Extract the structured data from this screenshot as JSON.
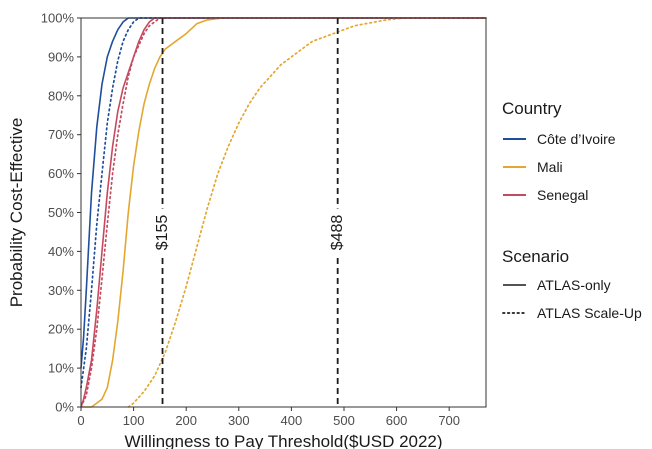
{
  "chart_data": {
    "type": "line",
    "title": "",
    "xlabel": "Willingness to Pay Threshold($USD 2022)",
    "ylabel": "Probability Cost-Effective",
    "xlim": [
      0,
      770
    ],
    "ylim": [
      0,
      1
    ],
    "x_ticks": [
      "0",
      "100",
      "200",
      "300",
      "400",
      "500",
      "600",
      "700"
    ],
    "y_ticks": [
      "0%",
      "10%",
      "20%",
      "30%",
      "40%",
      "50%",
      "60%",
      "70%",
      "80%",
      "90%",
      "100%"
    ],
    "grid": false,
    "reference_lines": [
      {
        "x": 155,
        "label": "$155",
        "color": "#1a1a1a"
      },
      {
        "x": 488,
        "label": "$488",
        "color": "#1a1a1a"
      }
    ],
    "legend_country": {
      "title": "Country",
      "placement": "right",
      "items": [
        {
          "label": "Côte d’Ivoire",
          "color": "#1f4e9c"
        },
        {
          "label": "Mali",
          "color": "#e3a72f"
        },
        {
          "label": "Senegal",
          "color": "#c34a5f"
        }
      ]
    },
    "legend_scenario": {
      "title": "Scenario",
      "placement": "right",
      "items": [
        {
          "label": "ATLAS-only",
          "style": "solid"
        },
        {
          "label": "ATLAS Scale-Up",
          "style": "dotted"
        }
      ]
    },
    "series": [
      {
        "country": "Côte d’Ivoire",
        "scenario": "ATLAS-only",
        "color": "#1f4e9c",
        "style": "solid",
        "x": [
          0,
          5,
          10,
          20,
          30,
          40,
          50,
          60,
          70,
          80,
          90,
          100,
          770
        ],
        "y": [
          0.1,
          0.18,
          0.3,
          0.55,
          0.72,
          0.83,
          0.9,
          0.94,
          0.97,
          0.99,
          1.0,
          1.0,
          1.0
        ]
      },
      {
        "country": "Côte d’Ivoire",
        "scenario": "ATLAS Scale-Up",
        "color": "#1f4e9c",
        "style": "dotted",
        "x": [
          0,
          10,
          20,
          30,
          40,
          50,
          60,
          70,
          80,
          90,
          100,
          110,
          120,
          770
        ],
        "y": [
          0.05,
          0.15,
          0.3,
          0.47,
          0.6,
          0.73,
          0.82,
          0.89,
          0.94,
          0.97,
          0.99,
          1.0,
          1.0,
          1.0
        ]
      },
      {
        "country": "Mali",
        "scenario": "ATLAS-only",
        "color": "#e3a72f",
        "style": "solid",
        "x": [
          0,
          20,
          30,
          40,
          50,
          60,
          70,
          80,
          90,
          100,
          110,
          120,
          130,
          140,
          150,
          160,
          180,
          200,
          220,
          240,
          270,
          300,
          770
        ],
        "y": [
          0,
          0,
          0.01,
          0.02,
          0.05,
          0.12,
          0.22,
          0.35,
          0.5,
          0.62,
          0.71,
          0.78,
          0.83,
          0.87,
          0.9,
          0.92,
          0.94,
          0.96,
          0.985,
          0.995,
          1.0,
          1.0,
          1.0
        ]
      },
      {
        "country": "Mali",
        "scenario": "ATLAS Scale-Up",
        "color": "#e3a72f",
        "style": "dotted",
        "x": [
          90,
          100,
          120,
          140,
          160,
          180,
          200,
          220,
          240,
          260,
          280,
          300,
          320,
          340,
          360,
          380,
          400,
          420,
          440,
          460,
          480,
          500,
          520,
          540,
          560,
          580,
          600,
          620,
          640,
          700,
          770
        ],
        "y": [
          0,
          0.01,
          0.04,
          0.08,
          0.14,
          0.22,
          0.31,
          0.41,
          0.51,
          0.6,
          0.67,
          0.73,
          0.78,
          0.82,
          0.85,
          0.88,
          0.9,
          0.92,
          0.94,
          0.95,
          0.96,
          0.97,
          0.98,
          0.985,
          0.99,
          0.995,
          0.998,
          1.0,
          1.0,
          1.0,
          1.0
        ]
      },
      {
        "country": "Senegal",
        "scenario": "ATLAS-only",
        "color": "#c34a5f",
        "style": "solid",
        "x": [
          0,
          5,
          10,
          20,
          30,
          40,
          50,
          60,
          70,
          80,
          90,
          100,
          110,
          120,
          130,
          140,
          150,
          160,
          770
        ],
        "y": [
          0,
          0.02,
          0.05,
          0.12,
          0.25,
          0.4,
          0.55,
          0.67,
          0.76,
          0.82,
          0.86,
          0.9,
          0.94,
          0.97,
          0.99,
          1.0,
          1.0,
          1.0,
          1.0
        ]
      },
      {
        "country": "Senegal",
        "scenario": "ATLAS Scale-Up",
        "color": "#c34a5f",
        "style": "dotted",
        "x": [
          0,
          10,
          20,
          30,
          40,
          50,
          60,
          70,
          80,
          90,
          100,
          110,
          120,
          130,
          140,
          150,
          160,
          770
        ],
        "y": [
          0,
          0.03,
          0.1,
          0.2,
          0.33,
          0.47,
          0.6,
          0.7,
          0.78,
          0.85,
          0.9,
          0.93,
          0.96,
          0.98,
          0.99,
          1.0,
          1.0,
          1.0
        ]
      }
    ]
  }
}
